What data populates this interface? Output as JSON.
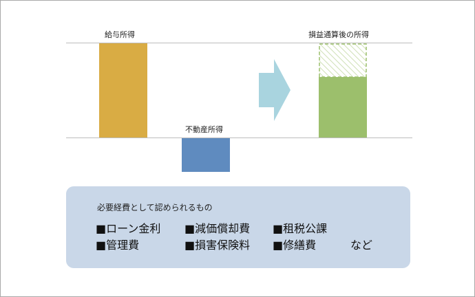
{
  "diagram": {
    "labels": {
      "salary_income": "給与所得",
      "real_estate_income": "不動産所得",
      "after_offset": "損益通算後の所得"
    },
    "expenses": {
      "title": "必要経費として認められるもの",
      "items": [
        "■ローン金利",
        "■減価償却費",
        "■租税公課",
        "■管理費",
        "■損害保険料",
        "■修繕費",
        "など"
      ]
    },
    "colors": {
      "salary_bar": "#d9ac44",
      "real_estate_bar": "#5f8bbf",
      "result_bar": "#9cbf6c",
      "arrow": "#a9d4df",
      "box_bg": "#c9d7e8"
    }
  }
}
